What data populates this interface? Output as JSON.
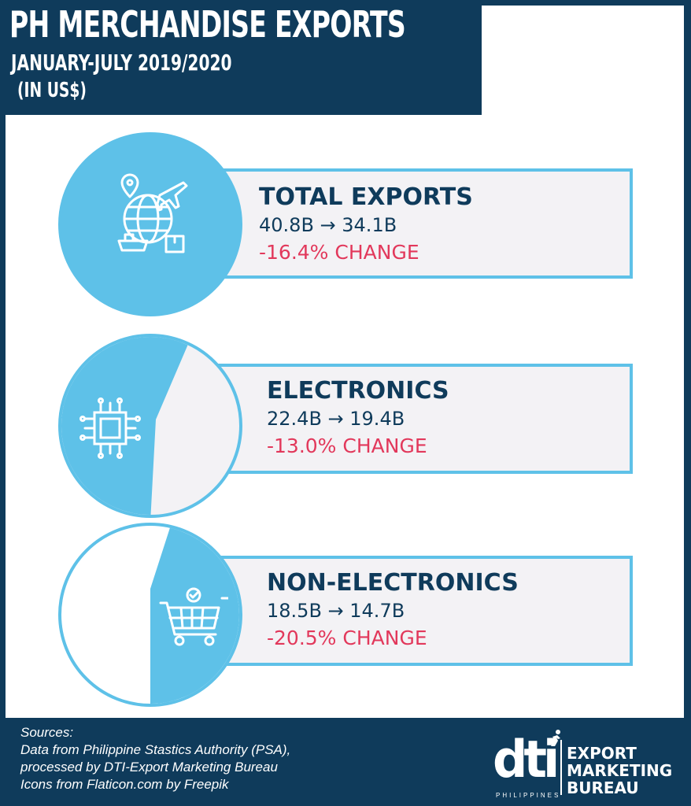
{
  "header": {
    "title": "PH MERCHANDISE EXPORTS",
    "subtitle": "JANUARY-JULY 2019/2020",
    "unit": "(IN US$)"
  },
  "categories": [
    {
      "label": "TOTAL EXPORTS",
      "values": "40.8B → 34.1B",
      "change": "-16.4% CHANGE",
      "icon": "globe-trade-icon"
    },
    {
      "label": "ELECTRONICS",
      "values": "22.4B → 19.4B",
      "change": "-13.0% CHANGE",
      "icon": "microchip-icon"
    },
    {
      "label": "NON-ELECTRONICS",
      "values": "18.5B → 14.7B",
      "change": "-20.5% CHANGE",
      "icon": "shopping-cart-icon"
    }
  ],
  "footer": {
    "sources_label": "Sources:",
    "line1": "Data from Philippine Stastics Authority (PSA),",
    "line2": "processed by DTI-Export Marketing Bureau",
    "line3": "Icons from Flaticon.com by Freepik"
  },
  "logo": {
    "brand": "dti",
    "country": "PHILIPPINES",
    "line1": "EXPORT",
    "line2": "MARKETING",
    "line3": "BUREAU"
  },
  "colors": {
    "navy": "#0f3b5b",
    "accent": "#5ec1e8",
    "change": "#e2385b",
    "card": "#f3f2f5"
  }
}
